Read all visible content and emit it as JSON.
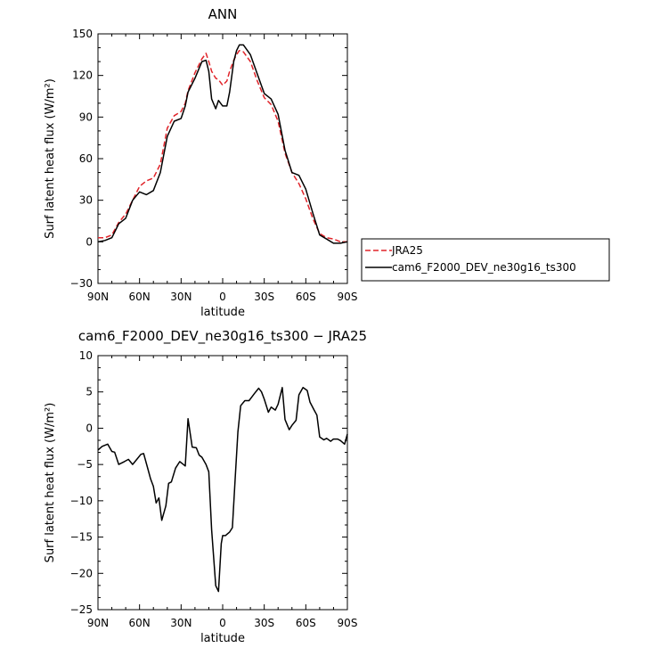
{
  "chart_data": [
    {
      "type": "line",
      "title": "ANN",
      "xlabel": "latitude",
      "ylabel": "Surf latent heat flux (W/m²)",
      "ylim": [
        -30,
        150
      ],
      "yticks": [
        -30,
        0,
        30,
        60,
        90,
        120,
        150
      ],
      "xlim": [
        -90,
        90
      ],
      "xticks": [
        -90,
        -60,
        -30,
        0,
        30,
        60,
        90
      ],
      "xtick_labels": [
        "90N",
        "60N",
        "30N",
        "0",
        "30S",
        "60S",
        "90S"
      ],
      "legend": "outside-right",
      "series": [
        {
          "name": "JRA25",
          "color": "#e0242a",
          "dash": "dashed",
          "x": [
            -90,
            -85,
            -80,
            -75,
            -70,
            -65,
            -60,
            -55,
            -50,
            -45,
            -40,
            -35,
            -30,
            -27,
            -25,
            -20,
            -15,
            -12,
            -10,
            -8,
            -5,
            -3,
            0,
            3,
            5,
            8,
            10,
            12,
            15,
            20,
            25,
            30,
            35,
            40,
            45,
            50,
            55,
            60,
            65,
            70,
            75,
            80,
            85,
            90
          ],
          "y": [
            3,
            3,
            5,
            14,
            20,
            30,
            40,
            44,
            46,
            56,
            82,
            91,
            94,
            100,
            109,
            122,
            132,
            136,
            130,
            123,
            118,
            117,
            113,
            116,
            123,
            131,
            135,
            138,
            137,
            130,
            116,
            104,
            99,
            87,
            64,
            50,
            42,
            31,
            17,
            6,
            3,
            2,
            0,
            0
          ]
        },
        {
          "name": "cam6_F2000_DEV_ne30g16_ts300",
          "color": "#000000",
          "dash": "solid",
          "x": [
            -90,
            -85,
            -80,
            -75,
            -70,
            -65,
            -60,
            -55,
            -50,
            -45,
            -40,
            -35,
            -30,
            -27,
            -25,
            -20,
            -15,
            -12,
            -10,
            -8,
            -5,
            -3,
            0,
            3,
            5,
            8,
            10,
            12,
            15,
            20,
            25,
            30,
            35,
            40,
            45,
            50,
            55,
            60,
            65,
            70,
            75,
            80,
            85,
            90
          ],
          "y": [
            0,
            1,
            3,
            13,
            17,
            30,
            36,
            34,
            37,
            50,
            76,
            87,
            89,
            98,
            108,
            118,
            130,
            131,
            123,
            103,
            96,
            102,
            98,
            98,
            108,
            130,
            138,
            142,
            142,
            135,
            121,
            107,
            103,
            92,
            66,
            50,
            48,
            38,
            21,
            5,
            2,
            -1,
            -1,
            0
          ]
        }
      ]
    },
    {
      "type": "line",
      "title": "cam6_F2000_DEV_ne30g16_ts300 − JRA25",
      "xlabel": "latitude",
      "ylabel": "Surf latent heat flux (W/m²)",
      "ylim": [
        -25,
        10
      ],
      "yticks": [
        -25,
        -20,
        -15,
        -10,
        -5,
        0,
        5,
        10
      ],
      "xlim": [
        -90,
        90
      ],
      "xticks": [
        -90,
        -60,
        -30,
        0,
        30,
        60,
        90
      ],
      "xtick_labels": [
        "90N",
        "60N",
        "30N",
        "0",
        "30S",
        "60S",
        "90S"
      ],
      "series": [
        {
          "color": "#000000",
          "x": [
            -90,
            -87,
            -83,
            -80,
            -78,
            -75,
            -71,
            -68,
            -65,
            -62,
            -59,
            -57,
            -54,
            -52,
            -50,
            -48,
            -46,
            -44,
            -41,
            -39,
            -37,
            -34,
            -31,
            -29,
            -27,
            -25,
            -22,
            -19,
            -17,
            -15,
            -12,
            -10,
            -8,
            -5,
            -3,
            -1,
            0,
            2,
            5,
            7,
            9,
            11,
            13,
            16,
            19,
            21,
            23,
            26,
            28,
            30,
            33,
            35,
            38,
            40,
            43,
            45,
            48,
            50,
            53,
            55,
            58,
            61,
            63,
            66,
            68,
            70,
            73,
            75,
            78,
            80,
            83,
            85,
            88,
            90
          ],
          "y": [
            -3,
            -2.5,
            -2.2,
            -3.2,
            -3.3,
            -5,
            -4.6,
            -4.3,
            -5,
            -4.3,
            -3.6,
            -3.5,
            -5.6,
            -7,
            -8,
            -10.3,
            -9.6,
            -12.7,
            -10.7,
            -7.6,
            -7.4,
            -5.5,
            -4.6,
            -4.9,
            -5.2,
            1.3,
            -2.6,
            -2.7,
            -3.7,
            -4,
            -5,
            -6,
            -14,
            -21.7,
            -22.5,
            -15.9,
            -14.8,
            -14.8,
            -14.3,
            -13.7,
            -7,
            -0.5,
            3.1,
            3.8,
            3.8,
            4.3,
            4.8,
            5.5,
            5,
            4,
            2.2,
            2.9,
            2.5,
            3.3,
            5.6,
            1.2,
            -0.2,
            0.4,
            1.1,
            4.6,
            5.6,
            5.2,
            3.6,
            2.5,
            1.8,
            -1.2,
            -1.6,
            -1.4,
            -1.8,
            -1.5,
            -1.5,
            -1.7,
            -2.2,
            -0.8
          ]
        }
      ]
    }
  ]
}
